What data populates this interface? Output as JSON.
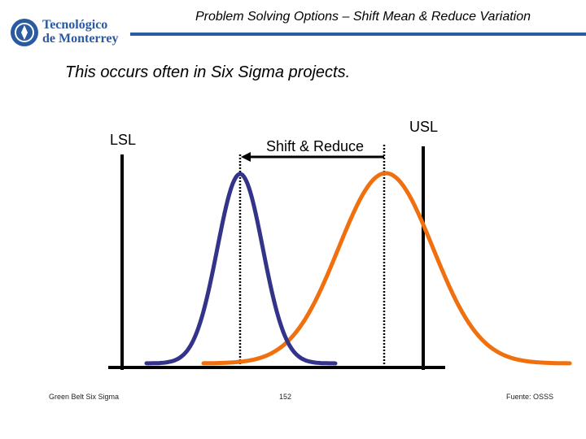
{
  "header": {
    "logo_lines": [
      "Tecnológico",
      "de Monterrey"
    ],
    "title": "Problem Solving Options – Shift Mean & Reduce Variation"
  },
  "subtitle": "This occurs often in Six Sigma projects.",
  "diagram": {
    "lsl_label": "LSL",
    "usl_label": "USL",
    "arrow_label": "Shift & Reduce",
    "colors": {
      "before_curve": "#f07010",
      "after_curve": "#33338a",
      "spec_limits": "#000000",
      "mean_markers": "#000000"
    }
  },
  "footer": {
    "left": "Green Belt Six Sigma",
    "center": "152",
    "right": "Fuente: OSSS"
  }
}
